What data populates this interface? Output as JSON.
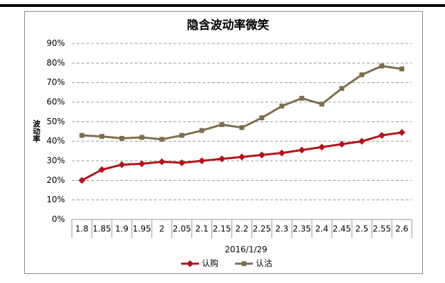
{
  "chart_data": {
    "type": "line",
    "title": "隐含波动率微笑",
    "y_label": "波动率",
    "x_label": "2016/1/29",
    "categories": [
      "1.8",
      "1.85",
      "1.9",
      "1.95",
      "2",
      "2.05",
      "2.1",
      "2.15",
      "2.2",
      "2.25",
      "2.3",
      "2.35",
      "2.4",
      "2.45",
      "2.5",
      "2.55",
      "2.6"
    ],
    "series": [
      {
        "name": "认购",
        "color": "#b5121b",
        "marker": "diamond",
        "values": [
          20,
          25.5,
          28,
          28.5,
          29.5,
          29,
          30,
          31,
          32,
          33,
          34,
          35.5,
          37,
          38.5,
          40,
          43,
          44.5
        ]
      },
      {
        "name": "认沽",
        "color": "#7f6d4c",
        "marker": "square",
        "values": [
          43,
          42.5,
          41.5,
          42,
          41,
          43,
          45.5,
          48.5,
          47,
          52,
          58,
          62,
          59,
          67,
          74,
          78.5,
          77
        ]
      }
    ],
    "ylim": [
      0,
      90
    ],
    "yticks": [
      {
        "value": 0,
        "label": "0%"
      },
      {
        "value": 10,
        "label": "10%"
      },
      {
        "value": 20,
        "label": "20%"
      },
      {
        "value": 30,
        "label": "30%"
      },
      {
        "value": 40,
        "label": "40%"
      },
      {
        "value": 50,
        "label": "50%"
      },
      {
        "value": 60,
        "label": "60%"
      },
      {
        "value": 70,
        "label": "70%"
      },
      {
        "value": 80,
        "label": "80%"
      },
      {
        "value": 90,
        "label": "90%"
      }
    ],
    "grid": true,
    "legend": "bottom"
  }
}
